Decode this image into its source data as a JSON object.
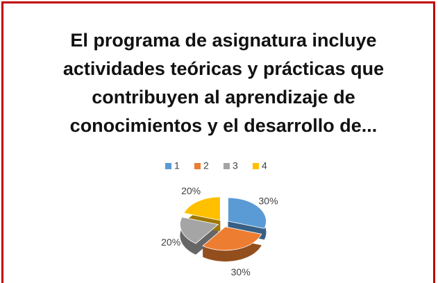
{
  "chart_data": {
    "type": "pie3d",
    "title": [
      "El programa de asignatura incluye",
      "actividades teóricas y prácticas que",
      "contribuyen al aprendizaje de",
      "conocimientos y el desarrollo de..."
    ],
    "categories": [
      "1",
      "2",
      "3",
      "4"
    ],
    "values": [
      30,
      30,
      20,
      20
    ],
    "value_labels": [
      "30%",
      "30%",
      "20%",
      "20%"
    ],
    "colors": [
      "#5b9bd5",
      "#ed7d31",
      "#a5a5a5",
      "#ffc000"
    ],
    "legend": "top"
  }
}
